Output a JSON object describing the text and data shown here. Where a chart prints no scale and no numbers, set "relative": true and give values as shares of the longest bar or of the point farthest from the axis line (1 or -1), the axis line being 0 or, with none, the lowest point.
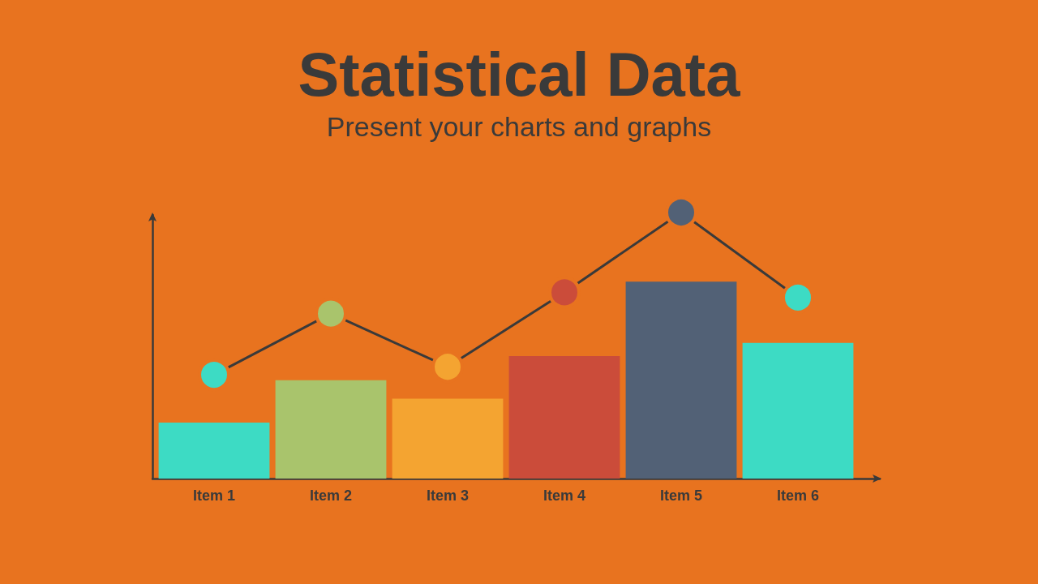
{
  "chart_data": {
    "type": "bar",
    "title": "Statistical Data",
    "subtitle": "Present your charts and graphs",
    "categories": [
      "Item 1",
      "Item 2",
      "Item 3",
      "Item 4",
      "Item 5",
      "Item 6"
    ],
    "relative": true,
    "marker": "circle",
    "line_style": "solid",
    "series": [
      {
        "colors": [
          "#3ddbc4",
          "#a9c46c",
          "#f4a431",
          "#cb4c3a",
          "#526176",
          "#3ddbc4"
        ],
        "values": [
          0.21,
          0.37,
          0.3,
          0.46,
          0.74,
          0.51
        ]
      },
      {
        "type": "line",
        "color": "#3a3a3a",
        "colors": [
          "#3ddbc4",
          "#a9c46c",
          "#f4a431",
          "#cb4c3a",
          "#526176",
          "#3ddbc4"
        ],
        "values": [
          0.39,
          0.62,
          0.42,
          0.7,
          1,
          0.68
        ]
      }
    ]
  }
}
